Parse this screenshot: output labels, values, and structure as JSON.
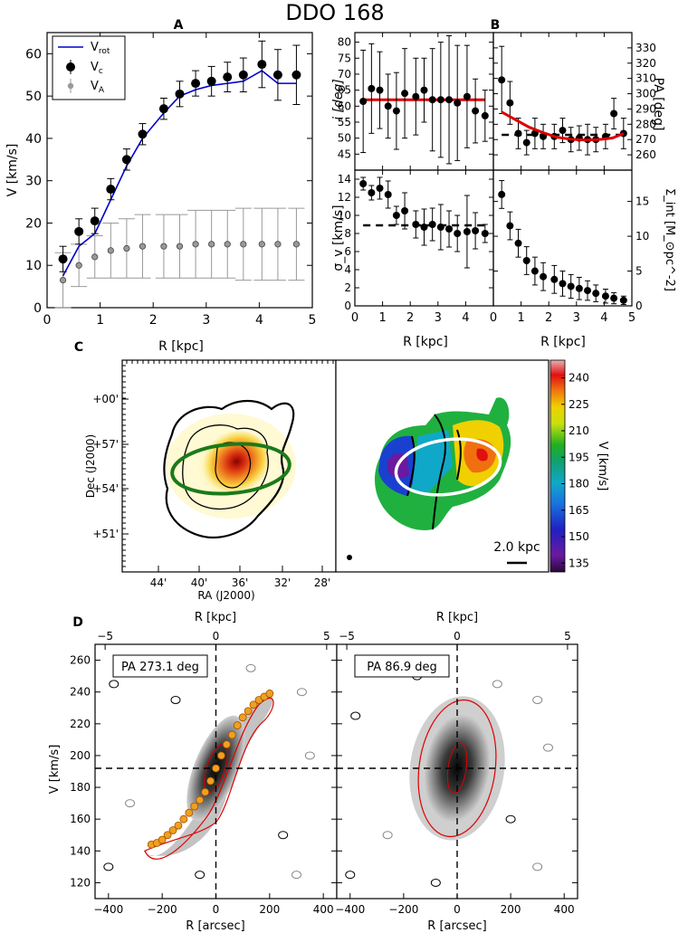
{
  "title": "DDO 168",
  "chart_data": [
    {
      "panel": "A",
      "type": "scatter",
      "xlabel": "R [kpc]",
      "ylabel": "V [km/s]",
      "xlim": [
        0,
        5
      ],
      "ylim": [
        0,
        65
      ],
      "xticks": [
        0,
        1,
        2,
        3,
        4,
        5
      ],
      "yticks": [
        0,
        10,
        20,
        30,
        40,
        50,
        60
      ],
      "legend": [
        {
          "label": "V",
          "sub": "rot",
          "color": "#0000cc",
          "kind": "line"
        },
        {
          "label": "V",
          "sub": "c",
          "color": "#000000",
          "kind": "errorpoint"
        },
        {
          "label": "V",
          "sub": "A",
          "color": "#999999",
          "kind": "errorpoint"
        }
      ],
      "series": [
        {
          "name": "Vrot",
          "x": [
            0.3,
            0.6,
            0.9,
            1.2,
            1.5,
            1.8,
            2.2,
            2.5,
            2.8,
            3.1,
            3.4,
            3.7,
            4.05,
            4.35,
            4.7
          ],
          "y": [
            7.5,
            14.5,
            17.5,
            25.5,
            33.5,
            40,
            46,
            50,
            51.5,
            52.5,
            53,
            53.5,
            56,
            53,
            53
          ]
        },
        {
          "name": "Vc",
          "x": [
            0.3,
            0.6,
            0.9,
            1.2,
            1.5,
            1.8,
            2.2,
            2.5,
            2.8,
            3.1,
            3.4,
            3.7,
            4.05,
            4.35,
            4.7
          ],
          "y": [
            11.5,
            18,
            20.5,
            28,
            35,
            41,
            47,
            50.5,
            53,
            53.5,
            54.5,
            55,
            57.5,
            55,
            55
          ],
          "err": [
            3,
            3,
            3,
            2.5,
            2.5,
            2.5,
            2.5,
            3,
            3,
            3.5,
            3.5,
            4,
            5.5,
            6,
            7
          ]
        },
        {
          "name": "VA",
          "x": [
            0.3,
            0.6,
            0.9,
            1.2,
            1.5,
            1.8,
            2.2,
            2.5,
            2.8,
            3.1,
            3.4,
            3.7,
            4.05,
            4.35,
            4.7
          ],
          "y": [
            6.5,
            10,
            12,
            13.5,
            14,
            14.5,
            14.5,
            14.5,
            15,
            15,
            15,
            15,
            15,
            15,
            15
          ],
          "err": [
            6.5,
            5,
            5,
            6.5,
            7,
            7.5,
            7.5,
            7.5,
            8,
            8,
            8,
            8.5,
            8.5,
            8.5,
            8.5
          ]
        }
      ]
    },
    {
      "panel": "B",
      "type": "scatter",
      "subplots": [
        {
          "name": "inclination",
          "ylabel": "i [deg]",
          "xlim": [
            0,
            5
          ],
          "ylim": [
            40,
            83
          ],
          "yticks": [
            45,
            50,
            55,
            60,
            65,
            70,
            75,
            80
          ],
          "x": [
            0.3,
            0.6,
            0.9,
            1.2,
            1.5,
            1.8,
            2.2,
            2.5,
            2.8,
            3.1,
            3.4,
            3.7,
            4.05,
            4.35,
            4.7
          ],
          "y": [
            61.5,
            65.5,
            65,
            60,
            58.5,
            64,
            63,
            65,
            62,
            62,
            62,
            61,
            63,
            58.5,
            57
          ],
          "err": [
            16,
            14,
            12,
            10,
            12,
            14,
            12,
            10,
            16,
            18,
            20,
            18,
            16,
            10,
            8
          ],
          "fit_value": 62,
          "fit_color": "#dd0000"
        },
        {
          "name": "position-angle",
          "ylabel": "PA [deg]",
          "xlim": [
            0,
            5
          ],
          "ylim": [
            250,
            340
          ],
          "yticks": [
            260,
            270,
            280,
            290,
            300,
            310,
            320,
            330
          ],
          "x": [
            0.3,
            0.6,
            0.9,
            1.2,
            1.5,
            1.8,
            2.2,
            2.5,
            2.8,
            3.1,
            3.4,
            3.7,
            4.05,
            4.35,
            4.7
          ],
          "y": [
            309,
            294,
            274,
            268,
            274,
            272,
            272,
            276,
            270,
            271,
            270,
            270,
            272,
            287,
            274
          ],
          "err": [
            22,
            14,
            10,
            8,
            10,
            8,
            8,
            8,
            8,
            8,
            10,
            8,
            8,
            10,
            10
          ],
          "fit_x": [
            0.3,
            0.8,
            1.3,
            1.8,
            2.3,
            2.8,
            3.3,
            3.8,
            4.3,
            4.7
          ],
          "fit_y": [
            288,
            283,
            278,
            274.5,
            271.5,
            270.2,
            269.7,
            270,
            271,
            274
          ],
          "fit_color": "#dd0000",
          "reference_value": 273.1
        },
        {
          "name": "velocity-dispersion",
          "ylabel": "σ_v [km/s]",
          "xlabel": "R [kpc]",
          "xlim": [
            0,
            5
          ],
          "ylim": [
            0,
            15
          ],
          "yticks": [
            0,
            2,
            4,
            6,
            8,
            10,
            12,
            14
          ],
          "xticks": [
            0,
            1,
            2,
            3,
            4
          ],
          "x": [
            0.3,
            0.6,
            0.9,
            1.2,
            1.5,
            1.8,
            2.2,
            2.5,
            2.8,
            3.1,
            3.4,
            3.7,
            4.05,
            4.35,
            4.7
          ],
          "y": [
            13.5,
            12.5,
            13,
            12.3,
            10,
            10.5,
            9,
            8.7,
            9,
            8.7,
            8.5,
            8,
            8.2,
            8.3,
            8
          ],
          "err": [
            0.7,
            0.8,
            1.2,
            1.5,
            1,
            2,
            1.5,
            2,
            1.8,
            2.5,
            2,
            2,
            4,
            2,
            1
          ],
          "reference_value": 8.9
        },
        {
          "name": "surface-density",
          "ylabel": "Σ_int [M_⊙pc^-2]",
          "xlabel": "R [kpc]",
          "xlim": [
            0,
            5
          ],
          "ylim": [
            0,
            19.5
          ],
          "yticks": [
            0,
            5,
            10,
            15
          ],
          "xticks": [
            0,
            1,
            2,
            3,
            4,
            5
          ],
          "x": [
            0.3,
            0.6,
            0.9,
            1.2,
            1.5,
            1.8,
            2.2,
            2.5,
            2.8,
            3.1,
            3.4,
            3.7,
            4.05,
            4.35,
            4.7
          ],
          "y": [
            16,
            11.5,
            9,
            6.5,
            5,
            4.2,
            3.8,
            3.2,
            2.8,
            2.5,
            2.2,
            1.8,
            1.4,
            1.1,
            0.8
          ],
          "err": [
            2,
            2,
            2,
            2,
            2,
            2,
            2,
            1.8,
            1.7,
            1.6,
            1.4,
            1.2,
            1,
            0.8,
            0.6
          ]
        }
      ]
    },
    {
      "panel": "C",
      "type": "heatmap",
      "left": {
        "xlabel": "RA (J2000)",
        "ylabel": "Dec (J2000)",
        "xticks": [
          "44'",
          "40'",
          "36'",
          "32'",
          "28'"
        ],
        "yticks": [
          "+00'",
          "+57'",
          "+54'",
          "+51'"
        ],
        "ellipse_color": "#1a7a1a"
      },
      "right": {
        "colorbar_label": "V [km/s]",
        "colorbar_ticks": [
          240,
          225,
          210,
          195,
          180,
          165,
          150,
          135
        ],
        "colorbar_range": [
          130,
          250
        ],
        "scale_bar": "2.0 kpc",
        "ellipse_color": "#ffffff"
      }
    },
    {
      "panel": "D",
      "type": "heatmap",
      "xlabel": "R [arcsec]",
      "top_xlabel": "R [kpc]",
      "ylabel": "V [km/s]",
      "xlim": [
        -450,
        450
      ],
      "ylim": [
        110,
        270
      ],
      "xticks": [
        -400,
        -200,
        0,
        200,
        400
      ],
      "xtick_labels": [
        "−400",
        "−200",
        "0",
        "200",
        "400"
      ],
      "top_xticks": [
        -5,
        0,
        5
      ],
      "top_xtick_labels": [
        "−5",
        "0",
        "5"
      ],
      "yticks": [
        120,
        140,
        160,
        180,
        200,
        220,
        240,
        260
      ],
      "systemic_velocity": 192,
      "slices": [
        {
          "label": "PA 273.1 deg",
          "rotation_curve_x": [
            -240,
            -220,
            -200,
            -180,
            -160,
            -140,
            -120,
            -100,
            -80,
            -60,
            -40,
            -20,
            0,
            20,
            40,
            60,
            80,
            100,
            120,
            140,
            160,
            180,
            200
          ],
          "rotation_curve_y": [
            144,
            145,
            147,
            150,
            153,
            156,
            160,
            164,
            168,
            172,
            177,
            184,
            192,
            200,
            207,
            213,
            219,
            224,
            228,
            232,
            235,
            237,
            239
          ]
        },
        {
          "label": "PA 86.9 deg"
        }
      ]
    }
  ]
}
